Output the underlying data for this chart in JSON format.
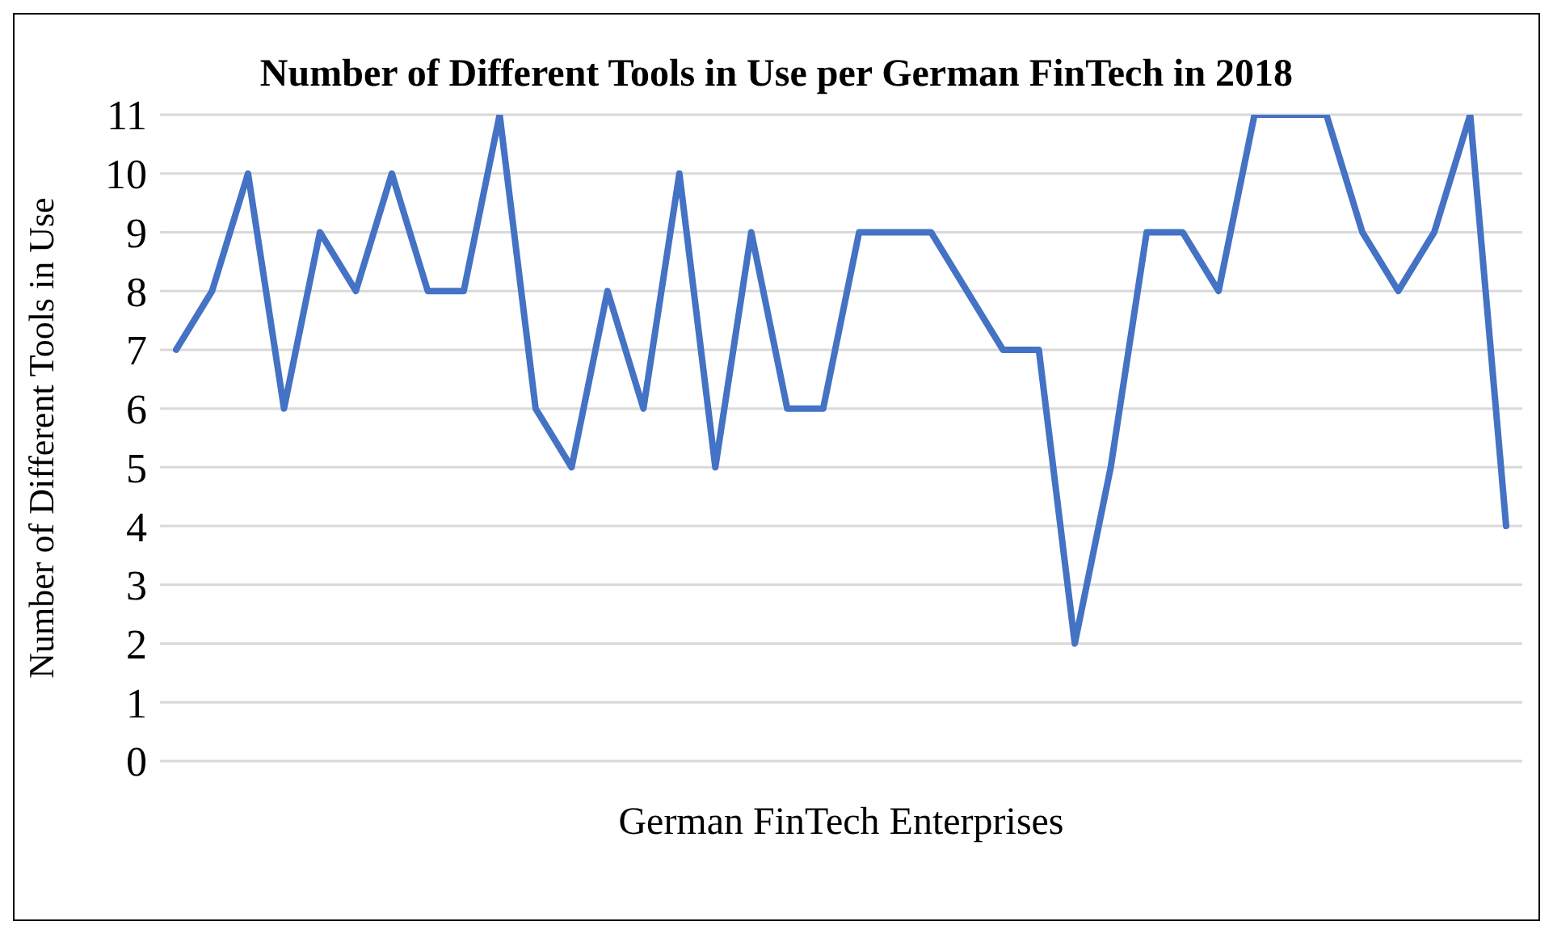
{
  "chart_data": {
    "type": "line",
    "title": "Number of Different Tools in Use per German FinTech in 2018",
    "xlabel": "German FinTech Enterprises",
    "ylabel": "Number of Different Tools in Use",
    "categories": [
      null,
      null,
      null,
      null,
      null,
      null,
      null,
      null,
      null,
      null,
      null,
      null,
      null,
      null,
      null,
      null,
      null,
      null,
      null,
      null,
      null,
      null,
      null,
      null,
      null,
      null,
      null,
      null,
      null,
      null,
      null,
      null,
      null,
      null,
      null,
      null,
      null,
      null
    ],
    "series": [
      {
        "color": "#4472c4",
        "values": [
          7,
          8,
          10,
          6,
          9,
          8,
          10,
          8,
          8,
          11,
          6,
          5,
          8,
          6,
          10,
          5,
          9,
          6,
          6,
          9,
          9,
          9,
          8,
          7,
          7,
          2,
          5,
          9,
          9,
          8,
          11,
          11,
          11,
          9,
          8,
          9,
          11,
          4
        ]
      }
    ],
    "ylim": [
      0,
      11
    ],
    "yticks": [
      0,
      1,
      2,
      3,
      4,
      5,
      6,
      7,
      8,
      9,
      10,
      11
    ],
    "grid": "y",
    "marker": "none",
    "line_style": "solid",
    "legend": false
  }
}
